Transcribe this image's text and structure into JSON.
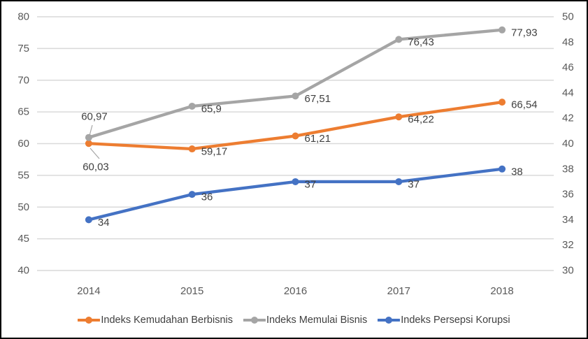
{
  "chart_data": {
    "type": "line",
    "x": [
      "2014",
      "2015",
      "2016",
      "2017",
      "2018"
    ],
    "series": [
      {
        "name": "Indeks Kemudahan Berbisnis",
        "axis": "left",
        "color": "#ED7D31",
        "values": [
          60.03,
          59.17,
          61.21,
          64.22,
          66.54
        ],
        "labels": [
          "60,03",
          "59,17",
          "61,21",
          "64,22",
          "66,54"
        ]
      },
      {
        "name": "Indeks Memulai Bisnis",
        "axis": "left",
        "color": "#A5A5A5",
        "values": [
          60.97,
          65.9,
          67.51,
          76.43,
          77.93
        ],
        "labels": [
          "60,97",
          "65,9",
          "67,51",
          "76,43",
          "77,93"
        ]
      },
      {
        "name": "Indeks Persepsi Korupsi",
        "axis": "right",
        "color": "#4472C4",
        "values": [
          34,
          36,
          37,
          37,
          38
        ],
        "labels": [
          "34",
          "36",
          "37",
          "37",
          "38"
        ]
      }
    ],
    "left_axis": {
      "min": 40,
      "max": 80,
      "step": 5,
      "ticks": [
        "80",
        "75",
        "70",
        "65",
        "60",
        "55",
        "50",
        "45",
        "40"
      ]
    },
    "right_axis": {
      "min": 30,
      "max": 50,
      "step": 2,
      "ticks": [
        "50",
        "48",
        "46",
        "44",
        "42",
        "40",
        "38",
        "36",
        "34",
        "32",
        "30"
      ]
    },
    "grid": true,
    "legend_position": "bottom",
    "colors": {
      "gridline": "#D9D9D9",
      "tick_label": "#595959",
      "data_label": "#404040",
      "leader_line": "#A6A6A6",
      "frame_border": "#000000",
      "background": "#FFFFFF"
    }
  }
}
